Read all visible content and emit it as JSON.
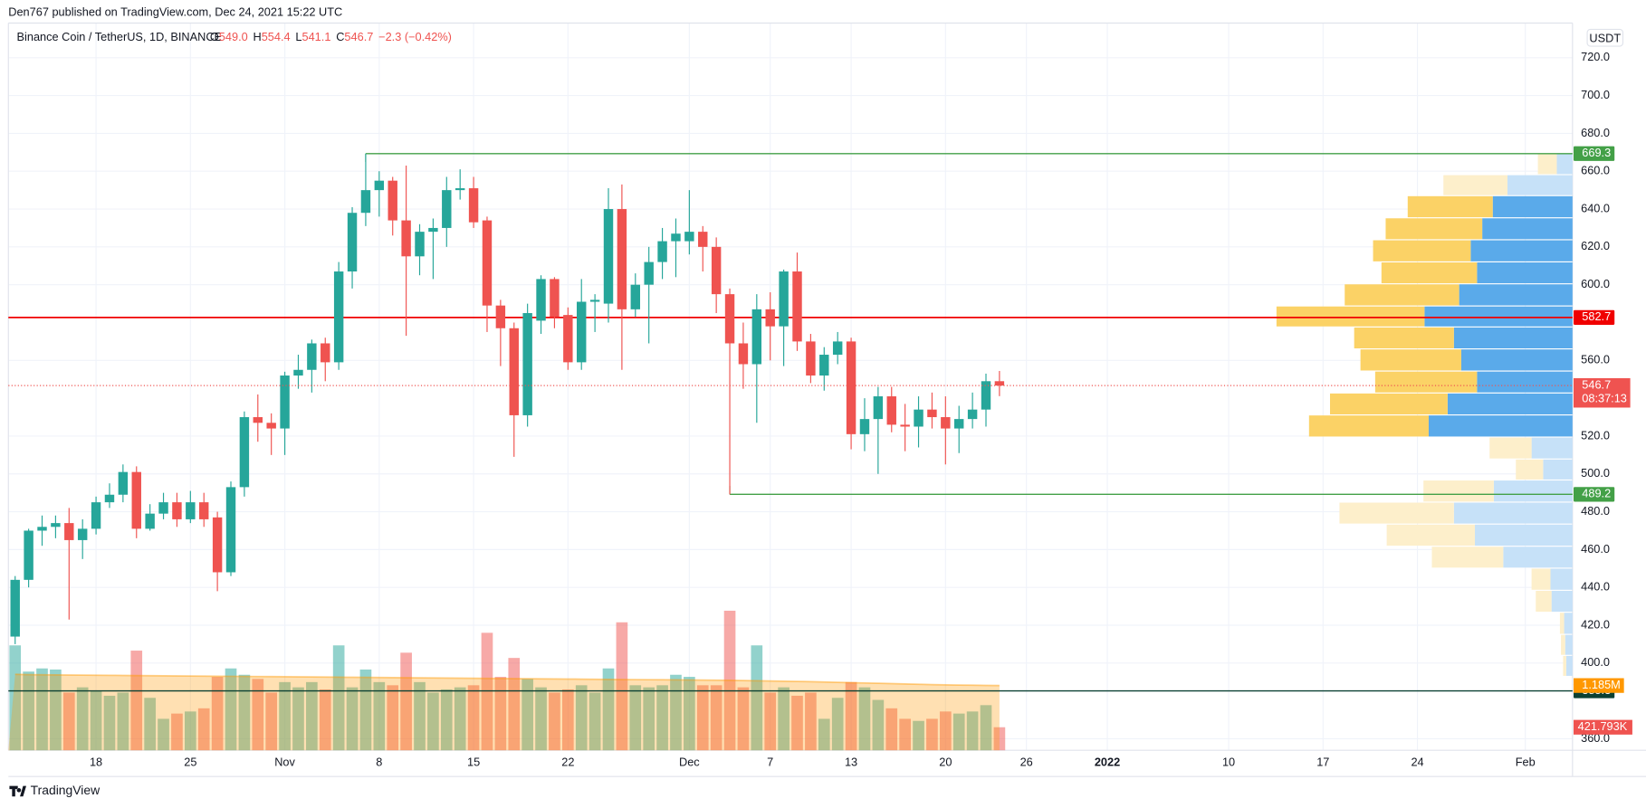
{
  "header": {
    "publisher": "Den767 published on TradingView.com, Dec 24, 2021 15:22 UTC",
    "brand": "TradingView"
  },
  "chart_data": {
    "type": "candlestick",
    "title": "Binance Coin / TetherUS, 1D, BINANCE",
    "ohlc_legend": [
      {
        "key": "O",
        "text": "549.0"
      },
      {
        "key": "H",
        "text": "554.4"
      },
      {
        "key": "L",
        "text": "541.1"
      },
      {
        "key": "C",
        "text": "546.7"
      },
      {
        "key": "",
        "text": "−2.3 (−0.42%)"
      }
    ],
    "currency": "USDT",
    "countdown": "08:37:13",
    "up_color": "#26a69a",
    "down_color": "#ef5350",
    "x": [
      "2021-10-12",
      "2021-10-13",
      "2021-10-14",
      "2021-10-15",
      "2021-10-16",
      "2021-10-17",
      "2021-10-18",
      "2021-10-19",
      "2021-10-20",
      "2021-10-21",
      "2021-10-22",
      "2021-10-23",
      "2021-10-24",
      "2021-10-25",
      "2021-10-26",
      "2021-10-27",
      "2021-10-28",
      "2021-10-29",
      "2021-10-30",
      "2021-10-31",
      "2021-11-01",
      "2021-11-02",
      "2021-11-03",
      "2021-11-04",
      "2021-11-05",
      "2021-11-06",
      "2021-11-07",
      "2021-11-08",
      "2021-11-09",
      "2021-11-10",
      "2021-11-11",
      "2021-11-12",
      "2021-11-13",
      "2021-11-14",
      "2021-11-15",
      "2021-11-16",
      "2021-11-17",
      "2021-11-18",
      "2021-11-19",
      "2021-11-20",
      "2021-11-21",
      "2021-11-22",
      "2021-11-23",
      "2021-11-24",
      "2021-11-25",
      "2021-11-26",
      "2021-11-27",
      "2021-11-28",
      "2021-11-29",
      "2021-11-30",
      "2021-12-01",
      "2021-12-02",
      "2021-12-03",
      "2021-12-04",
      "2021-12-05",
      "2021-12-06",
      "2021-12-07",
      "2021-12-08",
      "2021-12-09",
      "2021-12-10",
      "2021-12-11",
      "2021-12-12",
      "2021-12-13",
      "2021-12-14",
      "2021-12-15",
      "2021-12-16",
      "2021-12-17",
      "2021-12-18",
      "2021-12-19",
      "2021-12-20",
      "2021-12-21",
      "2021-12-22",
      "2021-12-23",
      "2021-12-24"
    ],
    "open": [
      414,
      444,
      470,
      472,
      474,
      465,
      471,
      485,
      489,
      501,
      471,
      479,
      485,
      476,
      485,
      477,
      448,
      493,
      530,
      527,
      524,
      552,
      555,
      569,
      559,
      607,
      638,
      650,
      655,
      634,
      615,
      628,
      630,
      650,
      651,
      634,
      589,
      577,
      531,
      581,
      603,
      584,
      559,
      591,
      590,
      640,
      587,
      600,
      612,
      623,
      623,
      628,
      620,
      595,
      569,
      558,
      587,
      578,
      607,
      570,
      552,
      563,
      570,
      521,
      529,
      541,
      526,
      525,
      534,
      530,
      524,
      529,
      534,
      549.0
    ],
    "high": [
      446,
      471,
      478,
      478,
      482,
      476,
      488,
      495,
      505,
      504,
      484,
      490,
      490,
      491,
      490,
      480,
      496,
      533,
      542,
      532,
      554,
      563,
      571,
      572,
      612,
      641,
      669.3,
      660,
      657,
      663,
      632,
      635,
      657,
      661,
      657,
      636,
      592,
      580,
      590,
      605,
      604,
      588,
      603,
      595,
      651,
      653,
      606,
      620,
      630,
      635,
      650,
      631,
      625,
      598,
      580,
      595,
      596,
      608,
      617,
      574,
      567,
      575,
      572,
      540,
      546,
      546,
      537,
      541,
      543,
      541,
      536,
      543,
      553,
      554.4
    ],
    "low": [
      410,
      440,
      462,
      466,
      423,
      455,
      468,
      482,
      485,
      466,
      470,
      476,
      472,
      474,
      472,
      438,
      446,
      488,
      517,
      510,
      510,
      545,
      543,
      549,
      555,
      598,
      631,
      636,
      626,
      573,
      605,
      603,
      620,
      645,
      630,
      575,
      557,
      509,
      525,
      574,
      577,
      555,
      555,
      575,
      580,
      555,
      583,
      569,
      603,
      604,
      616,
      607,
      585,
      489.2,
      545,
      527,
      560,
      557,
      565,
      548,
      544,
      558,
      513,
      512,
      500,
      522,
      512,
      514,
      524,
      505,
      511,
      524,
      525,
      541.1
    ],
    "close": [
      444,
      470,
      472,
      474,
      465,
      471,
      485,
      489,
      501,
      471,
      479,
      485,
      476,
      485,
      476,
      448,
      493,
      530,
      527,
      524,
      552,
      555,
      569,
      559,
      607,
      638,
      650,
      655,
      634,
      615,
      628,
      630,
      650,
      651,
      633,
      589,
      577,
      531,
      585,
      603,
      583,
      559,
      591,
      592,
      640,
      587,
      600,
      612,
      623,
      627,
      628,
      620,
      595,
      569,
      558,
      587,
      578,
      607,
      570,
      552,
      563,
      570,
      521,
      529,
      541,
      526,
      525,
      534,
      530,
      524,
      529,
      534,
      549,
      546.7
    ],
    "volume": {
      "values": [
        1920000,
        1440000,
        1498000,
        1478000,
        1056000,
        1152000,
        1094000,
        998000,
        1056000,
        1824000,
        960000,
        576000,
        672000,
        710000,
        768000,
        1344000,
        1498000,
        1382000,
        1306000,
        1056000,
        1248000,
        1152000,
        1248000,
        1114000,
        1920000,
        1152000,
        1478000,
        1248000,
        1190000,
        1786000,
        1248000,
        1056000,
        1114000,
        1152000,
        1190000,
        2150000,
        1344000,
        1690000,
        1306000,
        1152000,
        1056000,
        1114000,
        1190000,
        1056000,
        1498000,
        2342000,
        1190000,
        1152000,
        1190000,
        1382000,
        1344000,
        1190000,
        1190000,
        2554000,
        1152000,
        1920000,
        1056000,
        1152000,
        998000,
        1056000,
        576000,
        960000,
        1248000,
        1152000,
        922000,
        768000,
        576000,
        538000,
        576000,
        710000,
        672000,
        710000,
        826000,
        421793
      ],
      "last_label": "421.793K"
    },
    "volume_ma": {
      "values": [
        1390000,
        1385000,
        1382000,
        1380000,
        1378000,
        1376000,
        1374000,
        1372000,
        1370000,
        1368000,
        1366000,
        1364000,
        1362000,
        1360000,
        1358000,
        1356000,
        1354000,
        1352000,
        1350000,
        1348000,
        1346000,
        1344000,
        1342000,
        1340000,
        1338000,
        1336000,
        1334000,
        1332000,
        1330000,
        1328000,
        1326000,
        1324000,
        1322000,
        1320000,
        1318000,
        1316000,
        1314000,
        1312000,
        1310000,
        1308000,
        1306000,
        1304000,
        1302000,
        1300000,
        1298000,
        1296000,
        1294000,
        1292000,
        1290000,
        1288000,
        1286000,
        1284000,
        1282000,
        1280000,
        1276000,
        1272000,
        1268000,
        1264000,
        1260000,
        1256000,
        1250000,
        1244000,
        1238000,
        1232000,
        1226000,
        1220000,
        1214000,
        1208000,
        1202000,
        1198000,
        1194000,
        1191000,
        1188000,
        1185000
      ],
      "last_label": "1.185M",
      "color": "#ff9800"
    },
    "levels": [
      {
        "value": 669.3,
        "color": "#43a047",
        "start": "2021-11-07"
      },
      {
        "value": 582.7,
        "color": "#f00000"
      },
      {
        "value": 489.2,
        "color": "#43a047",
        "start": "2021-12-04"
      },
      {
        "value": 385.3,
        "color": "#0b4033"
      }
    ],
    "volume_profile": {
      "bins": [
        669.0,
        657.9,
        646.8,
        635.1,
        623.5,
        611.8,
        600.2,
        588.5,
        577.4,
        565.8,
        554.1,
        542.5,
        530.9,
        519.2,
        507.6,
        496.5,
        484.8,
        473.2,
        461.5,
        449.9,
        438.2,
        426.6,
        414.9,
        403.8,
        392.7
      ],
      "up": [
        15,
        62,
        76,
        86,
        97,
        91,
        108,
        141,
        113,
        106,
        91,
        119,
        137,
        39,
        28,
        75,
        113,
        93,
        66,
        21,
        20,
        8,
        7,
        6
      ],
      "down": [
        18,
        61,
        81,
        92,
        93,
        91,
        109,
        141,
        95,
        96,
        97,
        112,
        114,
        40,
        26,
        67,
        109,
        84,
        68,
        18,
        15,
        4,
        4,
        3
      ],
      "value_area": [
        519.2,
        646.8
      ],
      "up_color": "#5aaaea",
      "down_color": "#fbd266",
      "up_color_outside": "#c6e1f8",
      "down_color_outside": "#fdefcb"
    },
    "xlim": [
      "2021-10-12",
      "2022-02-04"
    ],
    "xticks": [
      {
        "value": "2021-10-18",
        "label": "18"
      },
      {
        "value": "2021-10-25",
        "label": "25"
      },
      {
        "value": "2021-11-01",
        "label": "Nov"
      },
      {
        "value": "2021-11-08",
        "label": "8"
      },
      {
        "value": "2021-11-15",
        "label": "15"
      },
      {
        "value": "2021-11-22",
        "label": "22"
      },
      {
        "value": "2021-12-01",
        "label": "Dec"
      },
      {
        "value": "2021-12-07",
        "label": "7"
      },
      {
        "value": "2021-12-13",
        "label": "13"
      },
      {
        "value": "2021-12-20",
        "label": "20"
      },
      {
        "value": "2021-12-26",
        "label": "26"
      },
      {
        "value": "2022-01-01",
        "label": "2022",
        "bold": true
      },
      {
        "value": "2022-01-10",
        "label": "10"
      },
      {
        "value": "2022-01-17",
        "label": "17"
      },
      {
        "value": "2022-01-24",
        "label": "24"
      },
      {
        "value": "2022-02-01",
        "label": "Feb"
      }
    ],
    "ylim": [
      353.9,
      738.3
    ],
    "yticks": [
      {
        "value": 720,
        "label": "720.0"
      },
      {
        "value": 700,
        "label": "700.0"
      },
      {
        "value": 680,
        "label": "680.0"
      },
      {
        "value": 660,
        "label": "660.0"
      },
      {
        "value": 640,
        "label": "640.0"
      },
      {
        "value": 620,
        "label": "620.0"
      },
      {
        "value": 600,
        "label": "600.0"
      },
      {
        "value": 560,
        "label": "560.0"
      },
      {
        "value": 520,
        "label": "520.0"
      },
      {
        "value": 500,
        "label": "500.0"
      },
      {
        "value": 480,
        "label": "480.0"
      },
      {
        "value": 460,
        "label": "460.0"
      },
      {
        "value": 440,
        "label": "440.0"
      },
      {
        "value": 420,
        "label": "420.0"
      },
      {
        "value": 400,
        "label": "400.0"
      },
      {
        "value": 360,
        "label": "360.0"
      }
    ],
    "grid": true
  }
}
